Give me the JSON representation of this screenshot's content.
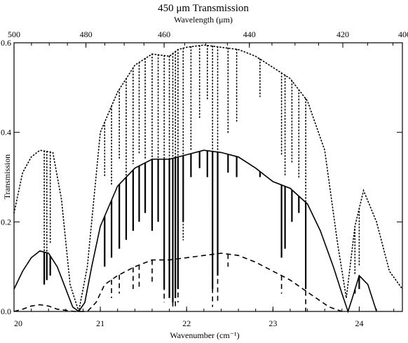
{
  "chart_data": {
    "type": "line",
    "title": "450 μm Transmission",
    "xlabel": "Wavenumber (cm⁻¹)",
    "ylabel": "Transmission",
    "top_axis_label": "Wavelength (μm)",
    "xlim": [
      20.0,
      24.5
    ],
    "ylim": [
      0.0,
      0.6
    ],
    "grid": false,
    "x_ticks": [
      20,
      21,
      22,
      23,
      24
    ],
    "y_ticks": [
      0.0,
      0.2,
      0.4,
      0.6
    ],
    "x_tick_labels": [
      "20",
      "21",
      "22",
      "23",
      "24"
    ],
    "y_tick_labels": [
      "0.0",
      "0.2",
      "0.4",
      "0.6"
    ],
    "top_ticks": [
      500,
      480,
      460,
      440,
      420,
      400
    ],
    "top_tick_labels": [
      "500",
      "480",
      "460",
      "440",
      "420",
      "400"
    ],
    "series": [
      {
        "style": "dotted",
        "x": [
          20.0,
          20.1,
          20.2,
          20.3,
          20.45,
          20.55,
          20.65,
          20.75,
          20.85,
          21.0,
          21.2,
          21.4,
          21.6,
          21.8,
          21.9,
          22.0,
          22.2,
          22.4,
          22.6,
          22.8,
          23.0,
          23.2,
          23.4,
          23.6,
          23.75,
          23.85,
          23.95,
          24.05,
          24.2,
          24.35,
          24.5
        ],
        "y": [
          0.22,
          0.31,
          0.345,
          0.36,
          0.355,
          0.25,
          0.06,
          0.0,
          0.1,
          0.4,
          0.49,
          0.55,
          0.575,
          0.57,
          0.585,
          0.59,
          0.595,
          0.59,
          0.585,
          0.57,
          0.545,
          0.52,
          0.47,
          0.36,
          0.15,
          0.03,
          0.19,
          0.27,
          0.2,
          0.09,
          0.05
        ],
        "absorption_lines": [
          [
            20.35,
            0.09
          ],
          [
            20.38,
            0.12
          ],
          [
            20.42,
            0.15
          ],
          [
            21.05,
            0.3
          ],
          [
            21.13,
            0.28
          ],
          [
            21.22,
            0.34
          ],
          [
            21.3,
            0.3
          ],
          [
            21.38,
            0.33
          ],
          [
            21.45,
            0.35
          ],
          [
            21.52,
            0.34
          ],
          [
            21.6,
            0.3
          ],
          [
            21.67,
            0.28
          ],
          [
            21.74,
            0.34
          ],
          [
            21.8,
            0.14
          ],
          [
            21.84,
            0.1
          ],
          [
            21.87,
            0.08
          ],
          [
            21.9,
            0.1
          ],
          [
            21.96,
            0.16
          ],
          [
            22.05,
            0.36
          ],
          [
            22.15,
            0.43
          ],
          [
            22.24,
            0.47
          ],
          [
            22.3,
            0.2
          ],
          [
            22.36,
            0.18
          ],
          [
            22.48,
            0.4
          ],
          [
            22.58,
            0.42
          ],
          [
            22.85,
            0.48
          ],
          [
            23.1,
            0.35
          ],
          [
            23.14,
            0.3
          ],
          [
            23.22,
            0.33
          ],
          [
            23.3,
            0.3
          ],
          [
            23.38,
            0.11
          ],
          [
            23.95,
            0.08
          ],
          [
            24.0,
            0.1
          ]
        ]
      },
      {
        "style": "solid",
        "x": [
          20.0,
          20.1,
          20.2,
          20.3,
          20.4,
          20.5,
          20.6,
          20.68,
          20.75,
          20.82,
          20.9,
          21.0,
          21.2,
          21.4,
          21.6,
          21.8,
          22.0,
          22.2,
          22.4,
          22.6,
          22.8,
          23.0,
          23.2,
          23.4,
          23.55,
          23.7,
          23.8,
          23.87,
          23.92,
          24.0,
          24.1,
          24.2
        ],
        "y": [
          0.05,
          0.09,
          0.12,
          0.135,
          0.13,
          0.1,
          0.05,
          0.01,
          0.0,
          0.02,
          0.1,
          0.19,
          0.28,
          0.32,
          0.34,
          0.34,
          0.35,
          0.36,
          0.355,
          0.345,
          0.32,
          0.29,
          0.275,
          0.24,
          0.18,
          0.1,
          0.04,
          0.0,
          0.03,
          0.08,
          0.06,
          0.0
        ],
        "absorption_lines": [
          [
            20.35,
            0.06
          ],
          [
            20.38,
            0.07
          ],
          [
            20.42,
            0.08
          ],
          [
            21.05,
            0.1
          ],
          [
            21.13,
            0.12
          ],
          [
            21.22,
            0.14
          ],
          [
            21.3,
            0.16
          ],
          [
            21.38,
            0.18
          ],
          [
            21.45,
            0.2
          ],
          [
            21.52,
            0.22
          ],
          [
            21.6,
            0.18
          ],
          [
            21.67,
            0.2
          ],
          [
            21.74,
            0.05
          ],
          [
            21.8,
            0.03
          ],
          [
            21.84,
            0.02
          ],
          [
            21.87,
            0.03
          ],
          [
            21.9,
            0.05
          ],
          [
            21.96,
            0.2
          ],
          [
            22.05,
            0.3
          ],
          [
            22.15,
            0.32
          ],
          [
            22.24,
            0.3
          ],
          [
            22.3,
            0.05
          ],
          [
            22.36,
            0.08
          ],
          [
            22.48,
            0.31
          ],
          [
            22.58,
            0.3
          ],
          [
            22.85,
            0.3
          ],
          [
            23.1,
            0.12
          ],
          [
            23.14,
            0.14
          ],
          [
            23.22,
            0.2
          ],
          [
            23.3,
            0.22
          ],
          [
            23.38,
            0.05
          ],
          [
            23.95,
            0.04
          ],
          [
            24.0,
            0.05
          ]
        ]
      },
      {
        "style": "dashed",
        "x": [
          20.0,
          20.1,
          20.2,
          20.3,
          20.4,
          20.5,
          20.7,
          20.85,
          20.95,
          21.05,
          21.2,
          21.4,
          21.6,
          21.8,
          22.0,
          22.2,
          22.4,
          22.6,
          22.8,
          23.0,
          23.2,
          23.35,
          23.5,
          23.65,
          23.8
        ],
        "y": [
          0.0,
          0.005,
          0.012,
          0.015,
          0.012,
          0.005,
          0.0,
          0.0,
          0.02,
          0.06,
          0.08,
          0.1,
          0.115,
          0.115,
          0.12,
          0.125,
          0.13,
          0.125,
          0.11,
          0.09,
          0.07,
          0.05,
          0.03,
          0.01,
          0.0
        ],
        "absorption_lines": [
          [
            21.13,
            0.03
          ],
          [
            21.22,
            0.04
          ],
          [
            21.38,
            0.05
          ],
          [
            21.45,
            0.05
          ],
          [
            21.6,
            0.06
          ],
          [
            21.74,
            0.02
          ],
          [
            21.84,
            0.01
          ],
          [
            21.87,
            0.01
          ],
          [
            21.9,
            0.02
          ],
          [
            22.3,
            0.01
          ],
          [
            22.36,
            0.02
          ],
          [
            22.48,
            0.1
          ],
          [
            23.1,
            0.04
          ],
          [
            23.38,
            0.0
          ]
        ]
      }
    ]
  }
}
